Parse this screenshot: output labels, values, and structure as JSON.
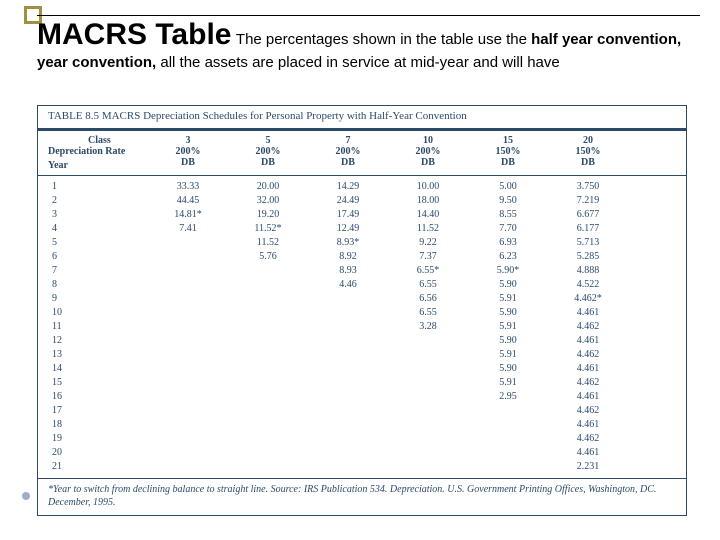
{
  "title": {
    "main": "MACRS Table",
    "sub": "The percentages shown in the table use the ",
    "sub_bold": "half year convention,",
    "cont": " all the assets are placed in service at mid-year and will have"
  },
  "table": {
    "caption_label": "TABLE 8.5",
    "caption_text": "MACRS Depreciation Schedules for Personal Property with Half-Year Convention",
    "header_left_top": "Class",
    "header_left_bottom": "Depreciation Rate",
    "header_year": "Year",
    "classes": [
      {
        "n": "3",
        "pct": "200%",
        "db": "DB"
      },
      {
        "n": "5",
        "pct": "200%",
        "db": "DB"
      },
      {
        "n": "7",
        "pct": "200%",
        "db": "DB"
      },
      {
        "n": "10",
        "pct": "200%",
        "db": "DB"
      },
      {
        "n": "15",
        "pct": "150%",
        "db": "DB"
      },
      {
        "n": "20",
        "pct": "150%",
        "db": "DB"
      }
    ],
    "years": [
      "1",
      "2",
      "3",
      "4",
      "5",
      "6",
      "7",
      "8",
      "9",
      "10",
      "11",
      "12",
      "13",
      "14",
      "15",
      "16",
      "17",
      "18",
      "19",
      "20",
      "21"
    ],
    "data": {
      "c3": [
        "33.33",
        "44.45",
        "14.81*",
        "7.41",
        "",
        "",
        "",
        "",
        "",
        "",
        "",
        "",
        "",
        "",
        "",
        "",
        "",
        "",
        "",
        "",
        ""
      ],
      "c5": [
        "20.00",
        "32.00",
        "19.20",
        "11.52*",
        "11.52",
        "5.76",
        "",
        "",
        "",
        "",
        "",
        "",
        "",
        "",
        "",
        "",
        "",
        "",
        "",
        "",
        ""
      ],
      "c7": [
        "14.29",
        "24.49",
        "17.49",
        "12.49",
        "8.93*",
        "8.92",
        "8.93",
        "4.46",
        "",
        "",
        "",
        "",
        "",
        "",
        "",
        "",
        "",
        "",
        "",
        "",
        ""
      ],
      "c10": [
        "10.00",
        "18.00",
        "14.40",
        "11.52",
        "9.22",
        "7.37",
        "6.55*",
        "6.55",
        "6.56",
        "6.55",
        "3.28",
        "",
        "",
        "",
        "",
        "",
        "",
        "",
        "",
        "",
        ""
      ],
      "c15": [
        "5.00",
        "9.50",
        "8.55",
        "7.70",
        "6.93",
        "6.23",
        "5.90*",
        "5.90",
        "5.91",
        "5.90",
        "5.91",
        "5.90",
        "5.91",
        "5.90",
        "5.91",
        "2.95",
        "",
        "",
        "",
        "",
        ""
      ],
      "c20": [
        "3.750",
        "7.219",
        "6.677",
        "6.177",
        "5.713",
        "5.285",
        "4.888",
        "4.522",
        "4.462*",
        "4.461",
        "4.462",
        "4.461",
        "4.462",
        "4.461",
        "4.462",
        "4.461",
        "4.462",
        "4.461",
        "4.462",
        "4.461",
        "2.231"
      ]
    },
    "footnote": "*Year to switch from declining balance to straight line. Source: IRS Publication 534. Depreciation. U.S. Government Printing Offices, Washington, DC. December, 1995."
  }
}
